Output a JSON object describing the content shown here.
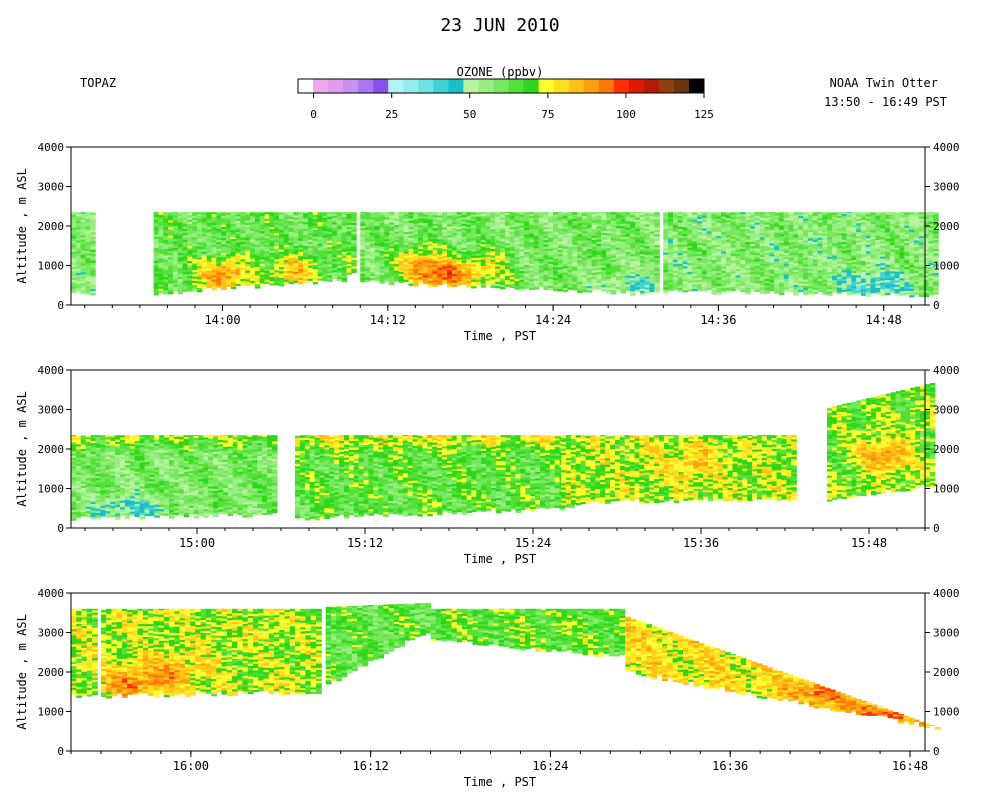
{
  "title": "23 JUN 2010",
  "left_label": "TOPAZ",
  "right_label_1": "NOAA Twin Otter",
  "right_label_2": "13:50 - 16:49 PST",
  "colorbar": {
    "title": "OZONE (ppbv)",
    "ticks": [
      "0",
      "25",
      "50",
      "75",
      "100",
      "125"
    ],
    "tick_values": [
      0,
      25,
      50,
      75,
      100,
      125
    ],
    "bins": [
      {
        "lo": -5,
        "hi": 0,
        "color": "#ffffff"
      },
      {
        "lo": 0,
        "hi": 5,
        "color": "#f0a8f0"
      },
      {
        "lo": 5,
        "hi": 10,
        "color": "#e09cf0"
      },
      {
        "lo": 10,
        "hi": 15,
        "color": "#c890f0"
      },
      {
        "lo": 15,
        "hi": 20,
        "color": "#a878f0"
      },
      {
        "lo": 20,
        "hi": 25,
        "color": "#8850e8"
      },
      {
        "lo": 25,
        "hi": 30,
        "color": "#b4f4f4"
      },
      {
        "lo": 30,
        "hi": 35,
        "color": "#94eeee"
      },
      {
        "lo": 35,
        "hi": 40,
        "color": "#6ce4e4"
      },
      {
        "lo": 40,
        "hi": 45,
        "color": "#40d4d8"
      },
      {
        "lo": 45,
        "hi": 50,
        "color": "#18c0cc"
      },
      {
        "lo": 50,
        "hi": 55,
        "color": "#b8f4a0"
      },
      {
        "lo": 55,
        "hi": 60,
        "color": "#98ee80"
      },
      {
        "lo": 60,
        "hi": 65,
        "color": "#78e860"
      },
      {
        "lo": 65,
        "hi": 70,
        "color": "#54e038"
      },
      {
        "lo": 70,
        "hi": 75,
        "color": "#2cd818"
      },
      {
        "lo": 75,
        "hi": 80,
        "color": "#ffff30"
      },
      {
        "lo": 80,
        "hi": 85,
        "color": "#ffe020"
      },
      {
        "lo": 85,
        "hi": 90,
        "color": "#ffc018"
      },
      {
        "lo": 90,
        "hi": 95,
        "color": "#ffa010"
      },
      {
        "lo": 95,
        "hi": 100,
        "color": "#ff7808"
      },
      {
        "lo": 100,
        "hi": 105,
        "color": "#ff3000"
      },
      {
        "lo": 105,
        "hi": 110,
        "color": "#e01800"
      },
      {
        "lo": 110,
        "hi": 115,
        "color": "#b81800"
      },
      {
        "lo": 115,
        "hi": 120,
        "color": "#904010"
      },
      {
        "lo": 120,
        "hi": 125,
        "color": "#6a3410"
      },
      {
        "lo": 125,
        "hi": 130,
        "color": "#000000"
      }
    ]
  },
  "chart_data": [
    {
      "type": "heatmap",
      "title": "",
      "xlabel": "Time , PST",
      "ylabel": "Altitude , m ASL",
      "xlim": [
        "13:49",
        "14:51"
      ],
      "ylim": [
        0,
        4000
      ],
      "x_ticks": [
        "14:00",
        "14:12",
        "14:24",
        "14:36",
        "14:48"
      ],
      "y_ticks": [
        "0",
        "1000",
        "2000",
        "3000",
        "4000"
      ],
      "curtains": [
        {
          "start": "13:49",
          "end": "13:50",
          "top": [
            2350,
            2350
          ],
          "bottom": [
            300,
            300
          ],
          "base": 60
        },
        {
          "start": "13:55",
          "end": "14:08",
          "top": [
            2350,
            2350
          ],
          "bottom": [
            300,
            650
          ],
          "base": 65,
          "hot": [
            {
              "t": "14:00",
              "alt": 700,
              "amp": 30
            },
            {
              "t": "14:05",
              "alt": 800,
              "amp": 22
            }
          ]
        },
        {
          "start": "14:09",
          "end": "14:09",
          "top": [
            2350,
            2350
          ],
          "bottom": [
            800,
            800
          ],
          "base": 70
        },
        {
          "start": "14:10",
          "end": "14:31",
          "top": [
            2350,
            2350
          ],
          "bottom": [
            600,
            280
          ],
          "base": 62,
          "hot": [
            {
              "t": "14:14",
              "alt": 1000,
              "amp": 26
            },
            {
              "t": "14:16",
              "alt": 700,
              "amp": 32
            },
            {
              "t": "14:19",
              "alt": 900,
              "amp": 18
            }
          ],
          "cool": {
            "t": "14:30",
            "alt": 500,
            "amp": 12
          }
        },
        {
          "start": "14:32",
          "end": "14:51",
          "top": [
            2350,
            2350
          ],
          "bottom": [
            350,
            250
          ],
          "base": 60,
          "cool": {
            "t": "14:47",
            "alt": 500,
            "amp": 18
          }
        }
      ]
    },
    {
      "type": "heatmap",
      "title": "",
      "xlabel": "Time , PST",
      "ylabel": "Altitude , m ASL",
      "xlim": [
        "14:51",
        "15:52"
      ],
      "ylim": [
        0,
        4000
      ],
      "x_ticks": [
        "15:00",
        "15:12",
        "15:24",
        "15:36",
        "15:48"
      ],
      "y_ticks": [
        "0",
        "1000",
        "2000",
        "3000",
        "4000"
      ],
      "curtains": [
        {
          "start": "14:51",
          "end": "15:05",
          "top": [
            2350,
            2350
          ],
          "bottom": [
            250,
            350
          ],
          "base": 62,
          "cool": {
            "t": "14:55",
            "alt": 500,
            "amp": 14
          },
          "warm_top": 14
        },
        {
          "start": "15:07",
          "end": "15:26",
          "top": [
            2350,
            2350
          ],
          "bottom": [
            250,
            500
          ],
          "base": 68,
          "warm_top": 14
        },
        {
          "start": "15:26",
          "end": "15:42",
          "top": [
            2350,
            2350
          ],
          "bottom": [
            650,
            750
          ],
          "base": 76,
          "hot": [
            {
              "t": "15:35",
              "alt": 1600,
              "amp": 10
            }
          ]
        },
        {
          "start": "15:45",
          "end": "15:52",
          "top": [
            3050,
            3700
          ],
          "bottom": [
            700,
            1100
          ],
          "base": 72,
          "hot": [
            {
              "t": "15:49",
              "alt": 1800,
              "amp": 22
            }
          ]
        }
      ]
    },
    {
      "type": "heatmap",
      "title": "",
      "xlabel": "Time , PST",
      "ylabel": "Altitude , m ASL",
      "xlim": [
        "15:52",
        "16:49"
      ],
      "ylim": [
        0,
        4000
      ],
      "x_ticks": [
        "16:00",
        "16:12",
        "16:24",
        "16:36",
        "16:48"
      ],
      "y_ticks": [
        "0",
        "1000",
        "2000",
        "3000",
        "4000"
      ],
      "curtains": [
        {
          "start": "15:52",
          "end": "15:53",
          "top": [
            3600,
            3600
          ],
          "bottom": [
            1400,
            1400
          ],
          "base": 76
        },
        {
          "start": "15:54",
          "end": "16:08",
          "top": [
            3600,
            3600
          ],
          "bottom": [
            1400,
            1500
          ],
          "base": 76,
          "hot": [
            {
              "t": "15:56",
              "alt": 1700,
              "amp": 20
            },
            {
              "t": "15:59",
              "alt": 2000,
              "amp": 14
            }
          ]
        },
        {
          "start": "16:09",
          "end": "16:15",
          "top": [
            3650,
            3750
          ],
          "bottom": [
            1700,
            3050
          ],
          "base": 67
        },
        {
          "start": "16:16",
          "end": "16:28",
          "top": [
            3600,
            3600
          ],
          "bottom": [
            2800,
            2400
          ],
          "base": 70
        },
        {
          "start": "16:29",
          "end": "16:49",
          "top": [
            3400,
            600
          ],
          "bottom": [
            2000,
            600
          ],
          "base": 82,
          "hot": [
            {
              "t": "16:42",
              "alt": 1500,
              "amp": 16
            },
            {
              "t": "16:46",
              "alt": 800,
              "amp": 20
            }
          ]
        }
      ]
    }
  ]
}
